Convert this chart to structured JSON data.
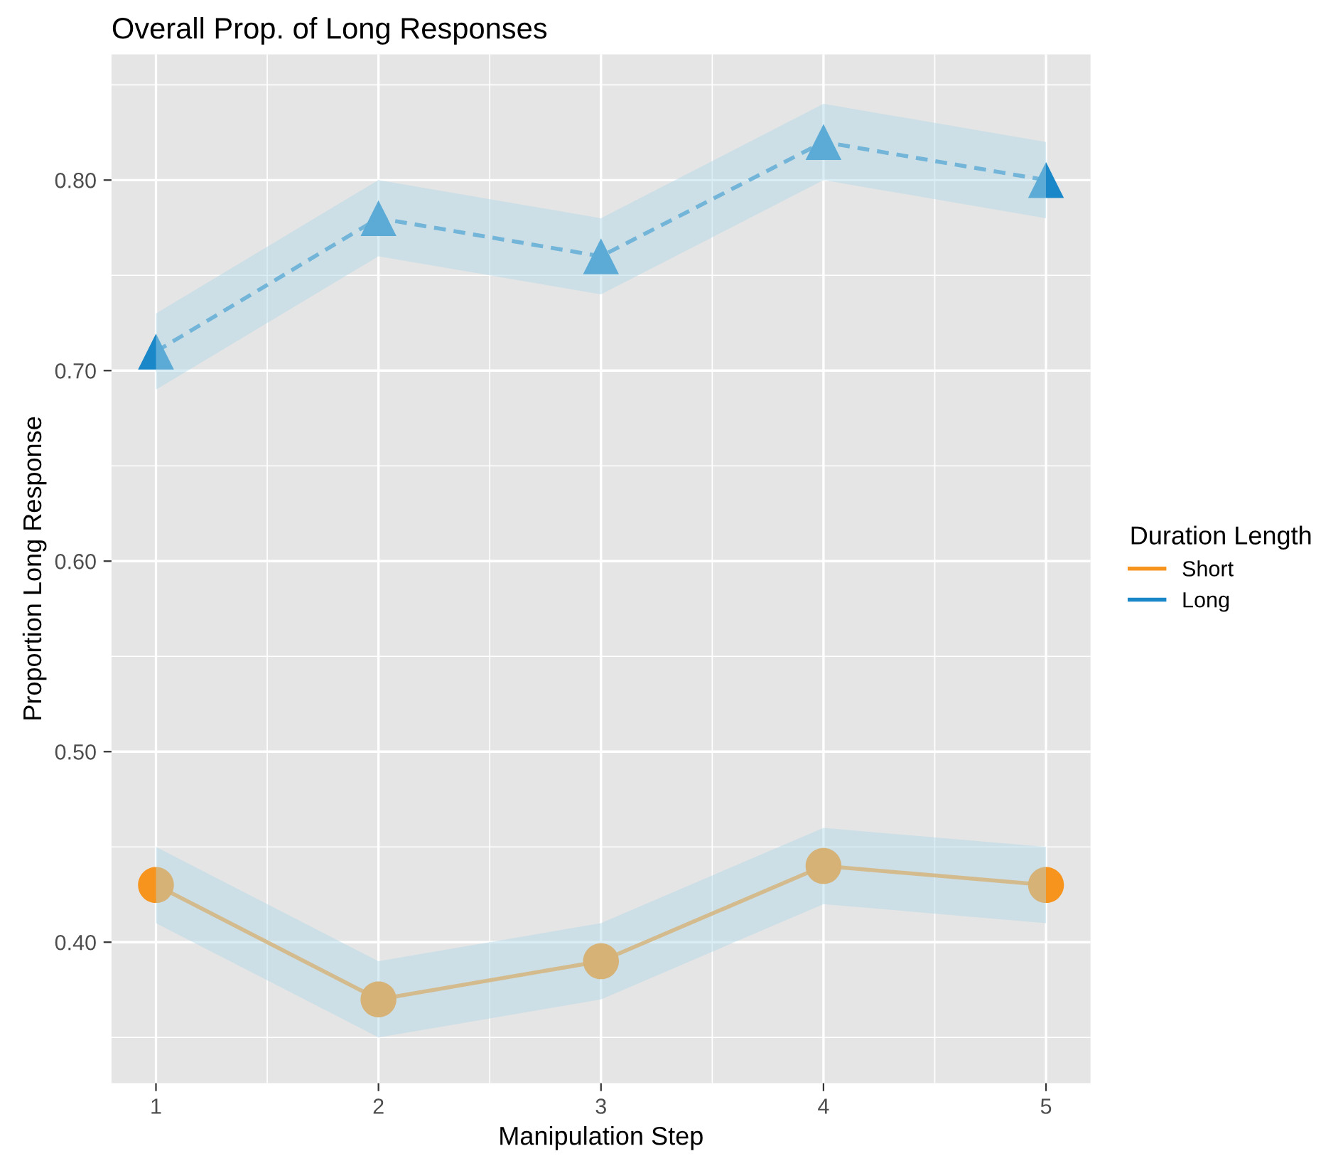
{
  "chart_data": {
    "type": "line",
    "title": "Overall Prop. of Long Responses",
    "xlabel": "Manipulation Step",
    "ylabel": "Proportion Long Response",
    "legend_title": "Duration Length",
    "x": [
      1,
      2,
      3,
      4,
      5
    ],
    "series": [
      {
        "name": "Short",
        "color": "#f7941d",
        "values": [
          0.43,
          0.37,
          0.39,
          0.44,
          0.43
        ],
        "lower": [
          0.41,
          0.35,
          0.37,
          0.42,
          0.41
        ],
        "upper": [
          0.45,
          0.39,
          0.41,
          0.46,
          0.45
        ],
        "marker": "circle",
        "line_style": "solid"
      },
      {
        "name": "Long",
        "color": "#1a87c8",
        "values": [
          0.71,
          0.78,
          0.76,
          0.82,
          0.8
        ],
        "lower": [
          0.69,
          0.76,
          0.74,
          0.8,
          0.78
        ],
        "upper": [
          0.73,
          0.8,
          0.78,
          0.84,
          0.82
        ],
        "marker": "triangle",
        "line_style": "dashed"
      }
    ],
    "xlim": [
      0.8,
      5.2
    ],
    "xticks": [
      1,
      2,
      3,
      4,
      5
    ],
    "ylim": [
      0.326,
      0.866
    ],
    "yticks": [
      {
        "value": 0.4,
        "label": "0.40"
      },
      {
        "value": 0.5,
        "label": "0.50"
      },
      {
        "value": 0.6,
        "label": "0.60"
      },
      {
        "value": 0.7,
        "label": "0.70"
      },
      {
        "value": 0.8,
        "label": "0.80"
      }
    ],
    "grid": true,
    "legend": "right"
  }
}
